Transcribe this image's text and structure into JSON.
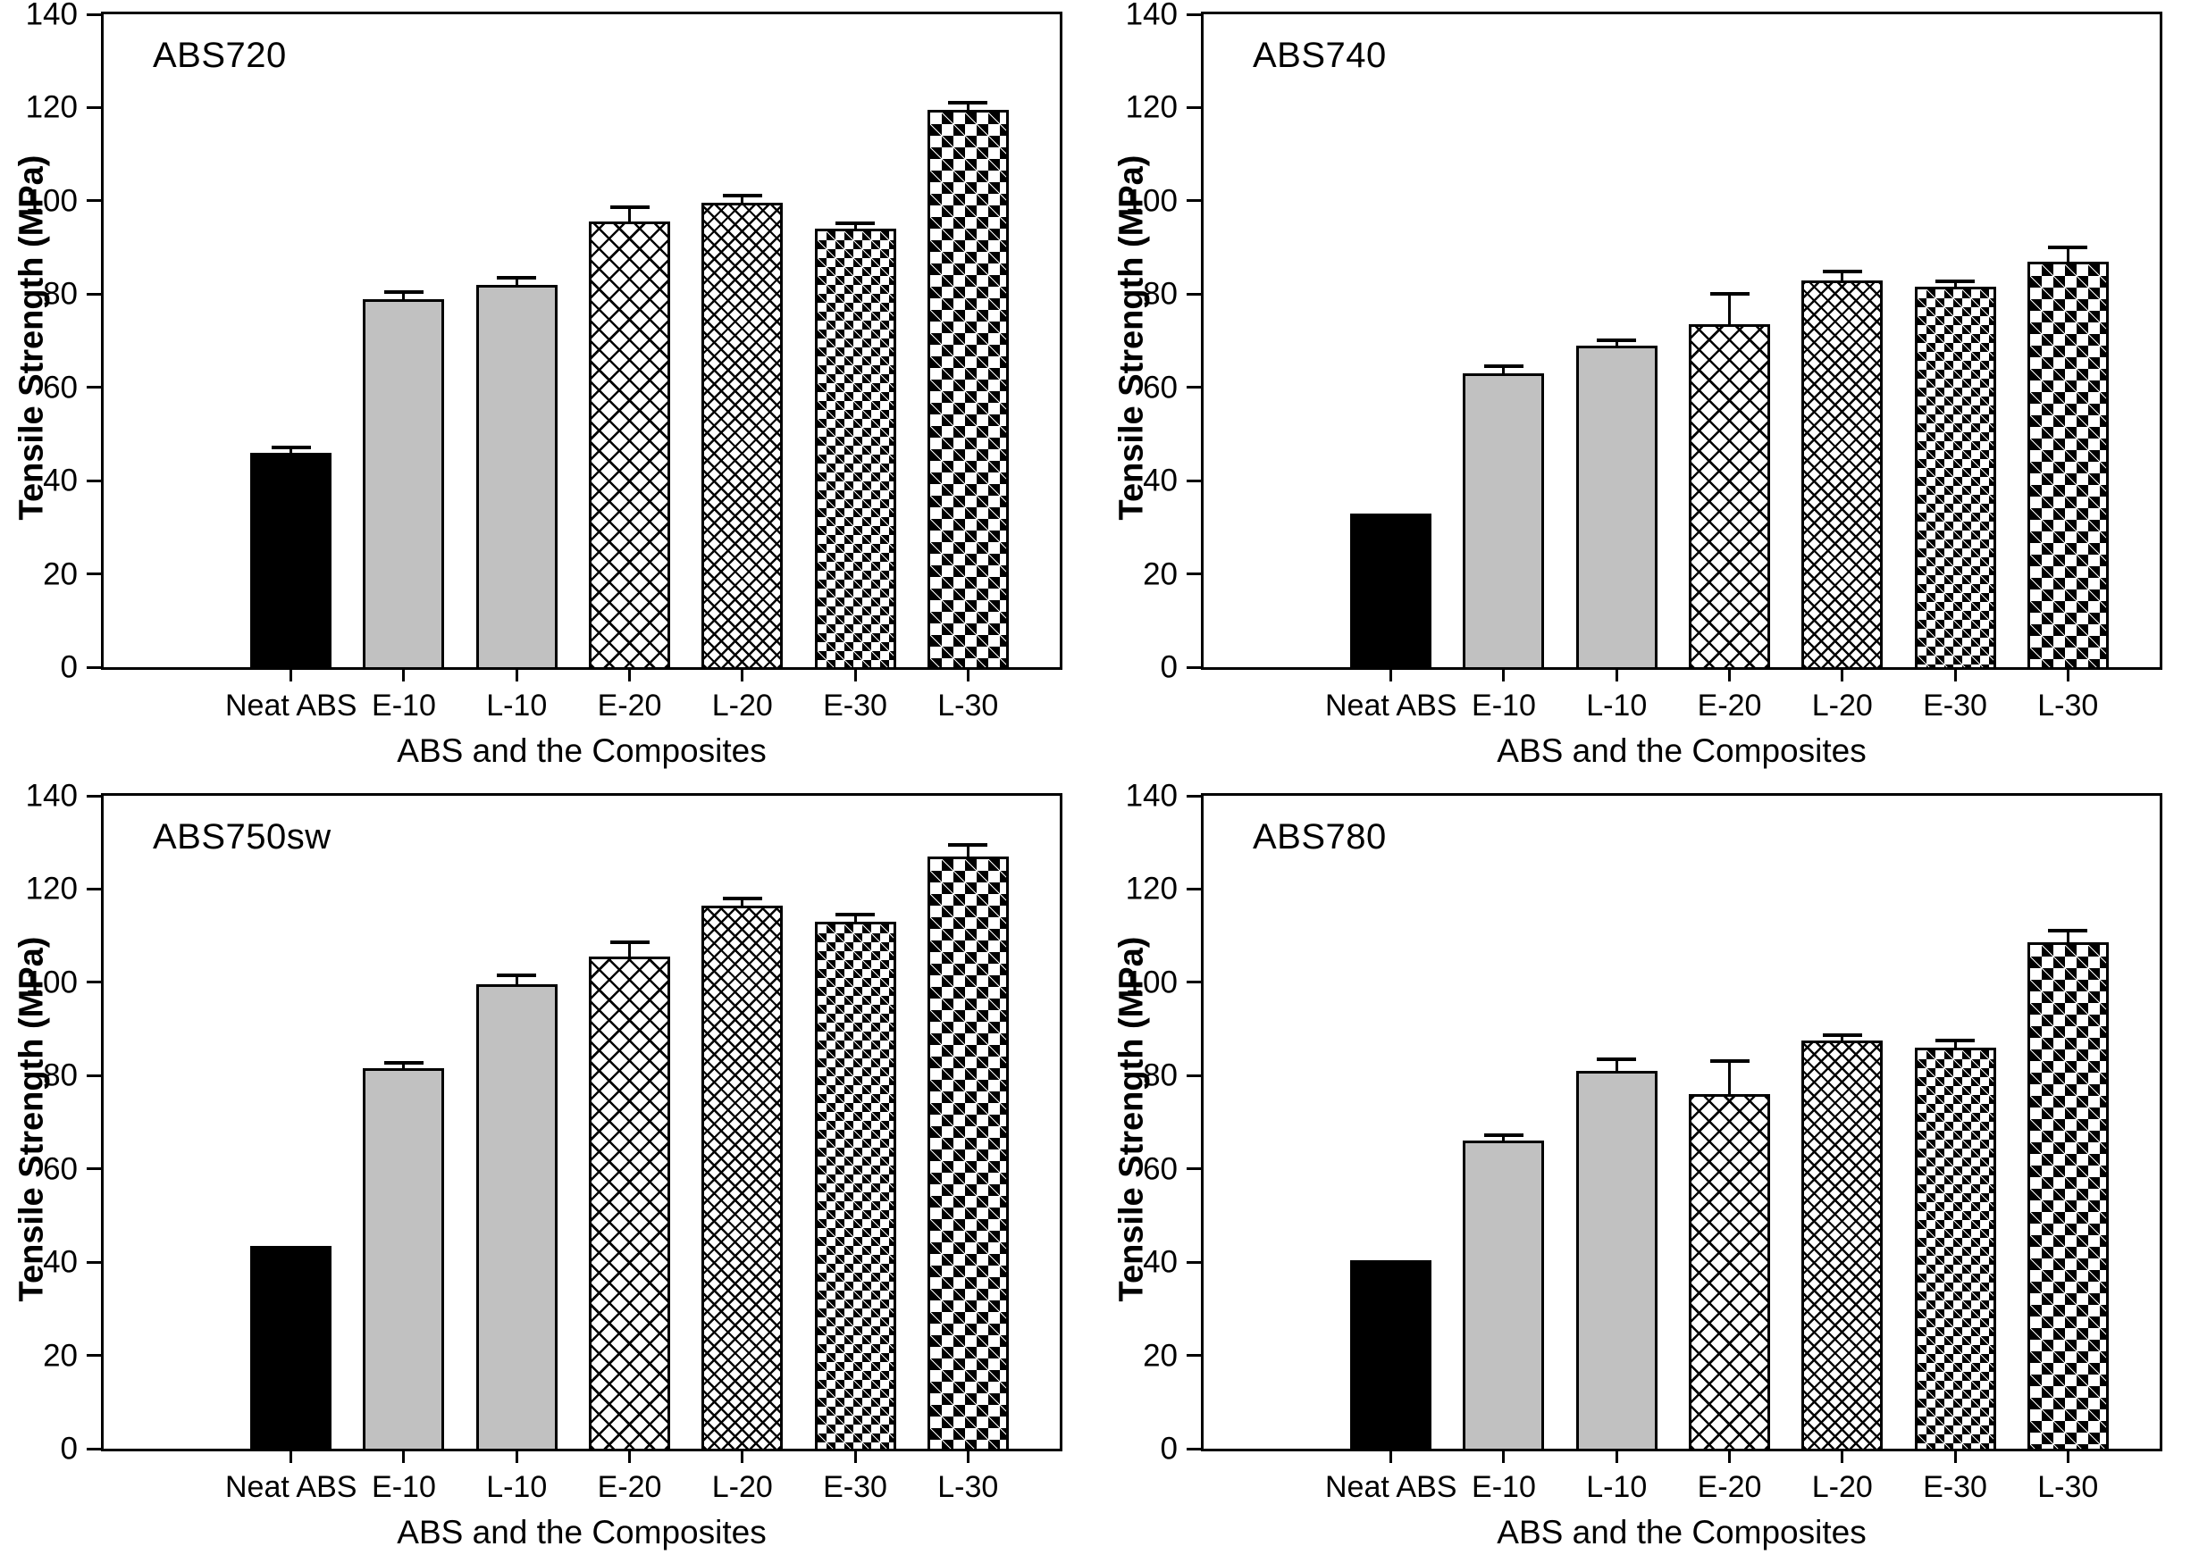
{
  "figure": {
    "ylabel": "Tensile Strength (MPa)",
    "xlabel": "ABS and the Composites",
    "categories": [
      "Neat ABS",
      "E-10",
      "L-10",
      "E-20",
      "L-20",
      "E-30",
      "L-30"
    ],
    "y_ticks": [
      0,
      20,
      40,
      60,
      80,
      100,
      120,
      140
    ],
    "ylim": [
      0,
      140
    ],
    "grid": "off",
    "legend": "none",
    "colors": {
      "ink": "#000000",
      "background": "#ffffff",
      "bar_gray": "#c1c1c1"
    }
  },
  "chart_data": [
    {
      "type": "bar",
      "title": "ABS720",
      "position": "top-left",
      "xlabel": "ABS and the Composites",
      "ylabel": "Tensile Strength (MPa)",
      "ylim": [
        0,
        140
      ],
      "categories": [
        "Neat ABS",
        "E-10",
        "L-10",
        "E-20",
        "L-20",
        "E-30",
        "L-30"
      ],
      "values": [
        46,
        79,
        82,
        95.5,
        99.5,
        94,
        119.5
      ],
      "errors": [
        1,
        1.5,
        1.5,
        3,
        1.5,
        1,
        1.5
      ],
      "bar_styles": [
        "solid-black",
        "solid-gray",
        "solid-gray",
        "hatch-coarse",
        "hatch-fine",
        "diamond-small",
        "diamond-large"
      ]
    },
    {
      "type": "bar",
      "title": "ABS740",
      "position": "top-right",
      "xlabel": "ABS and the Composites",
      "ylabel": "Tensile Strength (MPa)",
      "ylim": [
        0,
        140
      ],
      "categories": [
        "Neat ABS",
        "E-10",
        "L-10",
        "E-20",
        "L-20",
        "E-30",
        "L-30"
      ],
      "values": [
        33,
        63,
        69,
        73.5,
        83,
        81.5,
        87
      ],
      "errors": [
        0,
        1.5,
        1,
        6.5,
        2,
        0.5,
        3
      ],
      "bar_styles": [
        "solid-black",
        "solid-gray",
        "solid-gray",
        "hatch-coarse",
        "hatch-fine",
        "diamond-small",
        "diamond-large"
      ]
    },
    {
      "type": "bar",
      "title": "ABS750sw",
      "position": "bottom-left",
      "xlabel": "ABS and the Composites",
      "ylabel": "Tensile Strength (MPa)",
      "ylim": [
        0,
        140
      ],
      "categories": [
        "Neat ABS",
        "E-10",
        "L-10",
        "E-20",
        "L-20",
        "E-30",
        "L-30"
      ],
      "values": [
        43.5,
        81.5,
        99.5,
        105.5,
        116.5,
        113,
        127
      ],
      "errors": [
        0,
        0.5,
        2,
        3,
        1.5,
        1.5,
        2.5
      ],
      "bar_styles": [
        "solid-black",
        "solid-gray",
        "solid-gray",
        "hatch-coarse",
        "hatch-fine",
        "diamond-small",
        "diamond-large"
      ]
    },
    {
      "type": "bar",
      "title": "ABS780",
      "position": "bottom-right",
      "xlabel": "ABS and the Composites",
      "ylabel": "Tensile Strength (MPa)",
      "ylim": [
        0,
        140
      ],
      "categories": [
        "Neat ABS",
        "E-10",
        "L-10",
        "E-20",
        "L-20",
        "E-30",
        "L-30"
      ],
      "values": [
        40.5,
        66,
        81,
        76,
        87.5,
        86,
        108.5
      ],
      "errors": [
        0,
        0.5,
        2.5,
        7,
        1,
        1.5,
        2.5
      ],
      "bar_styles": [
        "solid-black",
        "solid-gray",
        "solid-gray",
        "hatch-coarse",
        "hatch-fine",
        "diamond-small",
        "diamond-large"
      ]
    }
  ]
}
